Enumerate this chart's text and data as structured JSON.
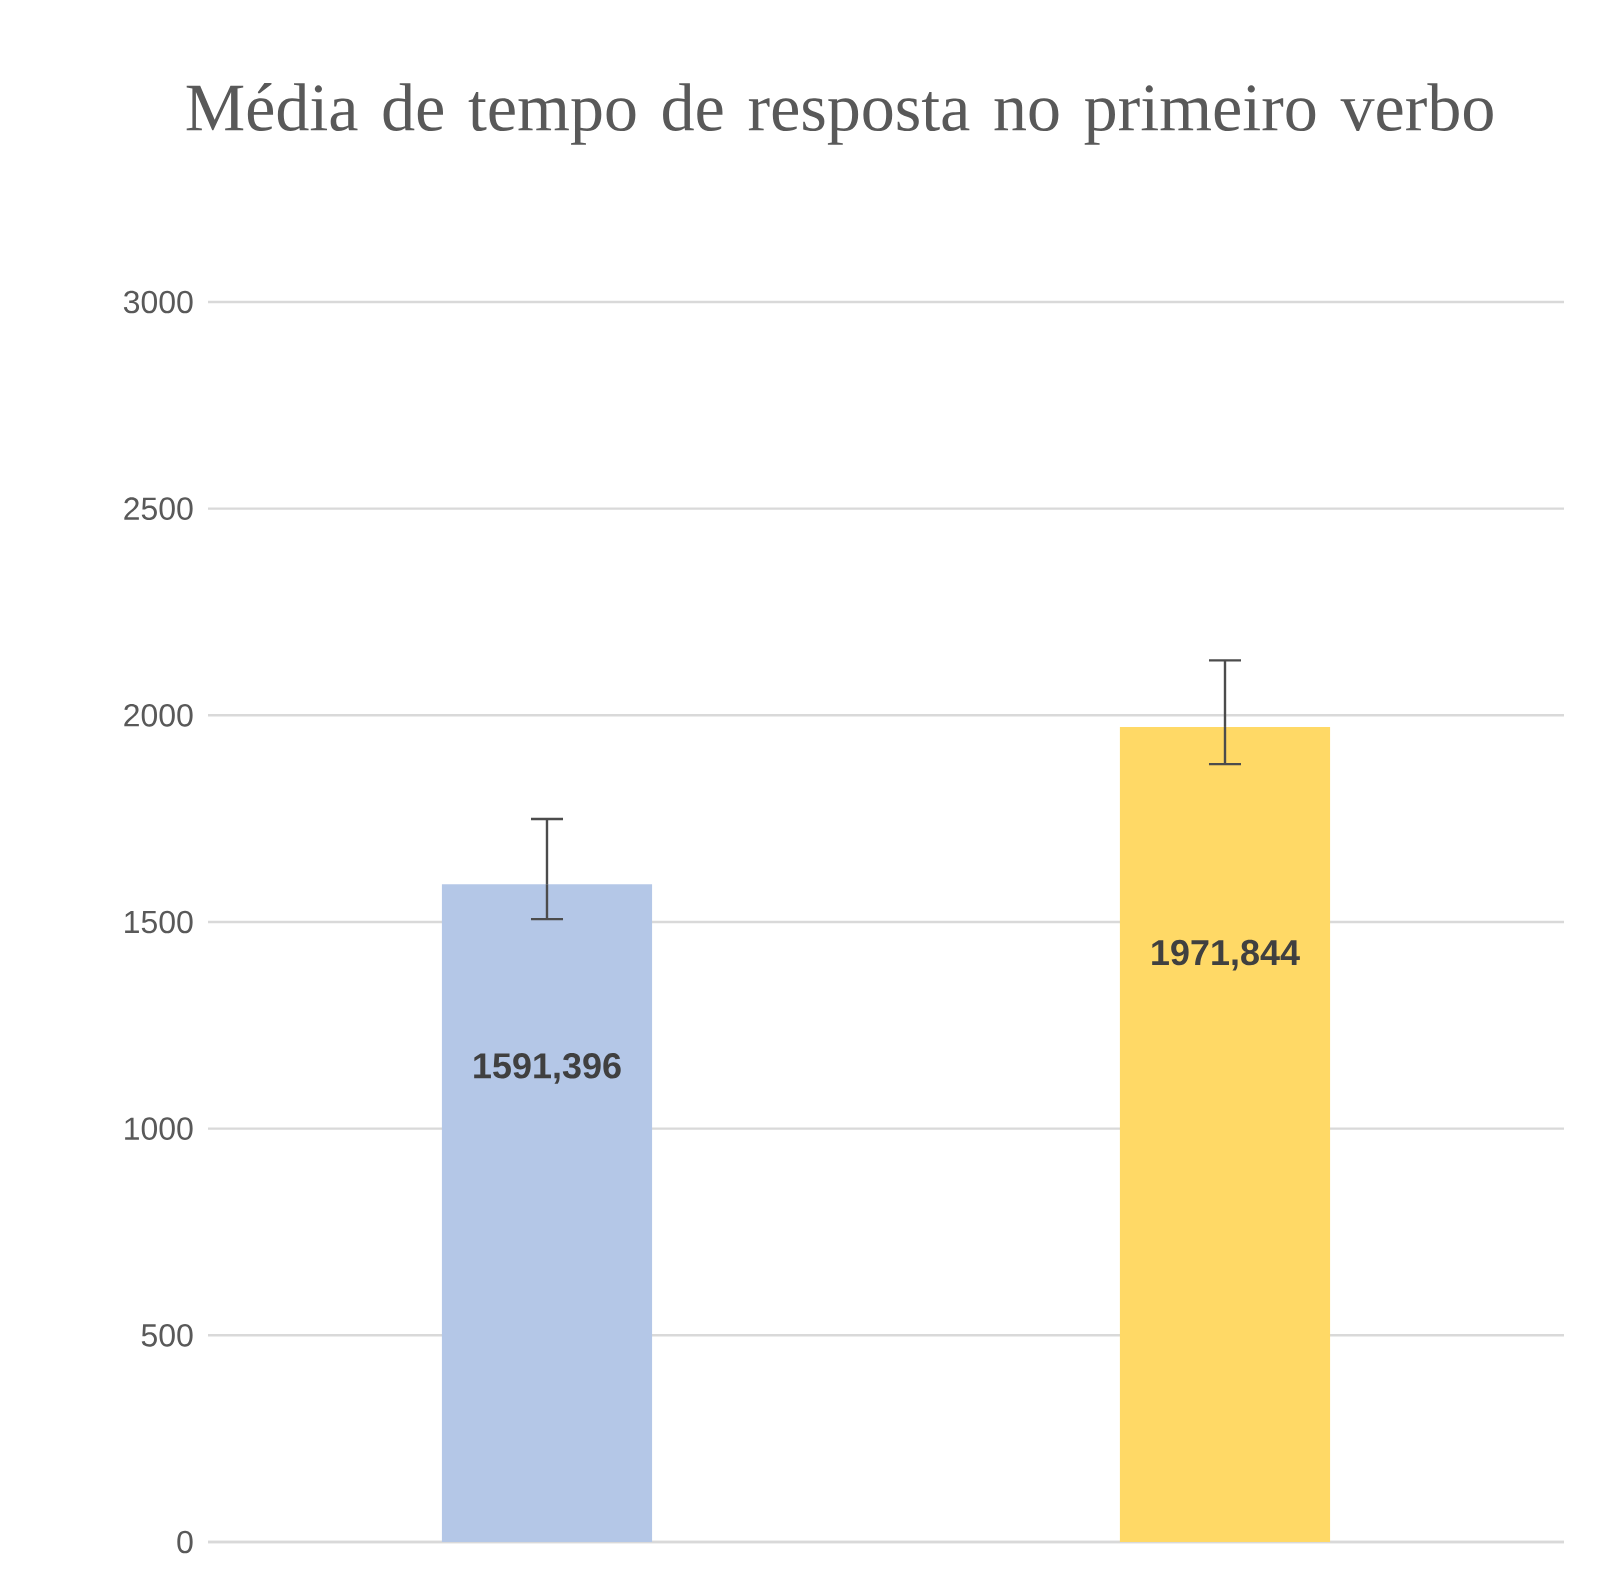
{
  "chart_data": {
    "type": "bar",
    "title": "Média de tempo de resposta no primeiro verbo",
    "categories": [
      null,
      null
    ],
    "values": [
      1591.396,
      1971.844
    ],
    "colors": [
      "#b4c7e7",
      "#ffd966"
    ],
    "errors": [
      [
        1507,
        1749
      ],
      [
        1882,
        2133
      ]
    ],
    "value_labels": [
      "1591,396",
      "1971,844"
    ],
    "ylim": [
      0,
      3000
    ],
    "yticks": [
      0,
      500,
      1000,
      1500,
      2000,
      2500,
      3000
    ],
    "grid": "y"
  }
}
